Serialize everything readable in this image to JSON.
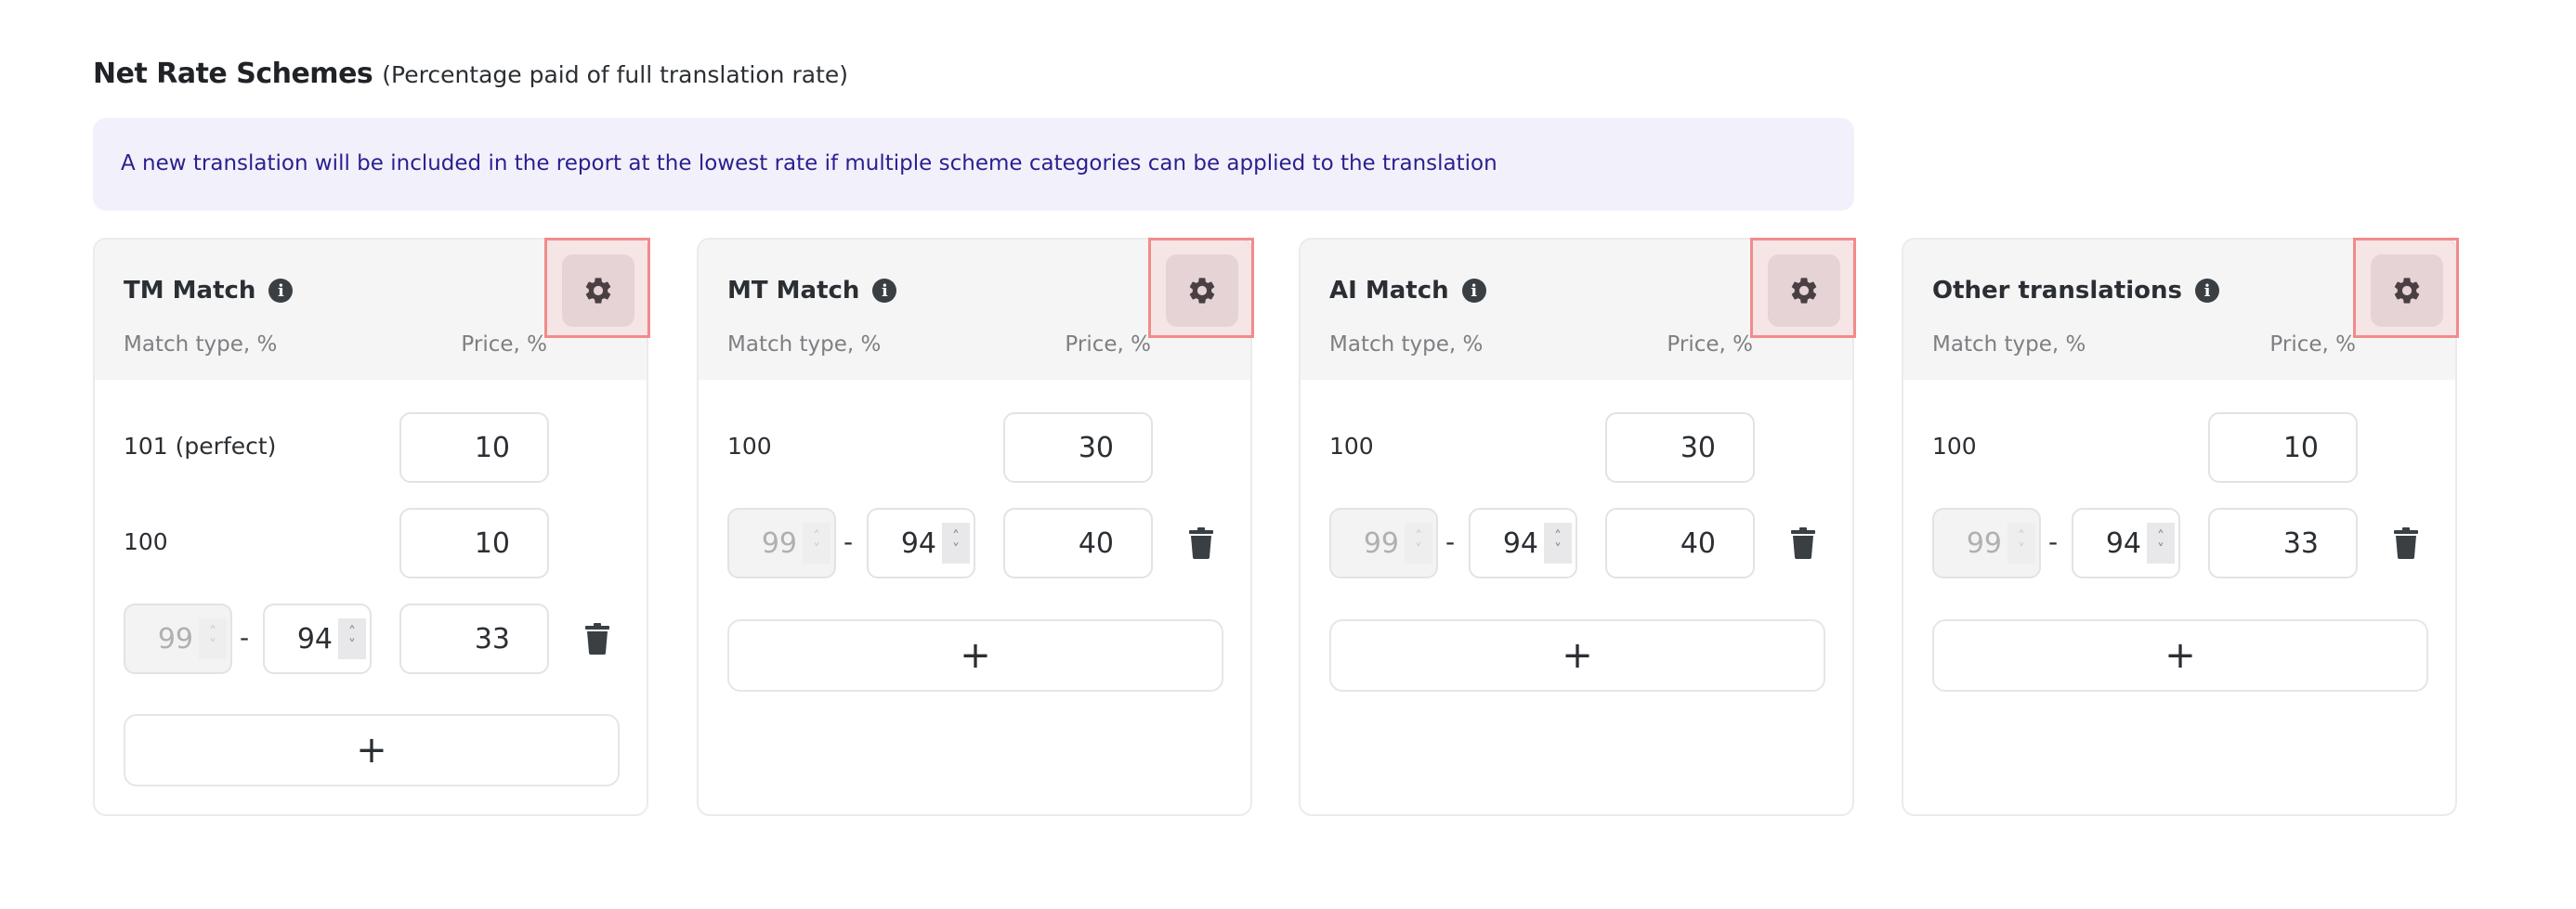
{
  "header": {
    "title": "Net Rate Schemes",
    "subtitle": "(Percentage paid of full translation rate)"
  },
  "banner": {
    "text": "A new translation will be included in the report at the lowest rate if multiple scheme categories can be applied to the translation"
  },
  "colors": {
    "banner_bg": "#f2f1fb",
    "banner_text": "#2a1f8f",
    "highlight": "#f28b8b"
  },
  "columns": {
    "match_type": "Match type, %",
    "price": "Price, %"
  },
  "add_label": "+",
  "range_separator": "-",
  "cards": [
    {
      "title": "TM Match",
      "icon": "info-icon",
      "settings_icon": "gear-icon",
      "fixed_rows": [
        {
          "label": "101 (perfect)",
          "price": "10"
        },
        {
          "label": "100",
          "price": "10"
        }
      ],
      "range_rows": [
        {
          "from": "99",
          "to": "94",
          "price": "33"
        }
      ]
    },
    {
      "title": "MT Match",
      "icon": "info-icon",
      "settings_icon": "gear-icon",
      "fixed_rows": [
        {
          "label": "100",
          "price": "30"
        }
      ],
      "range_rows": [
        {
          "from": "99",
          "to": "94",
          "price": "40"
        }
      ]
    },
    {
      "title": "AI Match",
      "icon": "info-icon",
      "settings_icon": "gear-icon",
      "fixed_rows": [
        {
          "label": "100",
          "price": "30"
        }
      ],
      "range_rows": [
        {
          "from": "99",
          "to": "94",
          "price": "40"
        }
      ]
    },
    {
      "title": "Other translations",
      "icon": "info-icon",
      "settings_icon": "gear-icon",
      "fixed_rows": [
        {
          "label": "100",
          "price": "10"
        }
      ],
      "range_rows": [
        {
          "from": "99",
          "to": "94",
          "price": "33"
        }
      ]
    }
  ]
}
